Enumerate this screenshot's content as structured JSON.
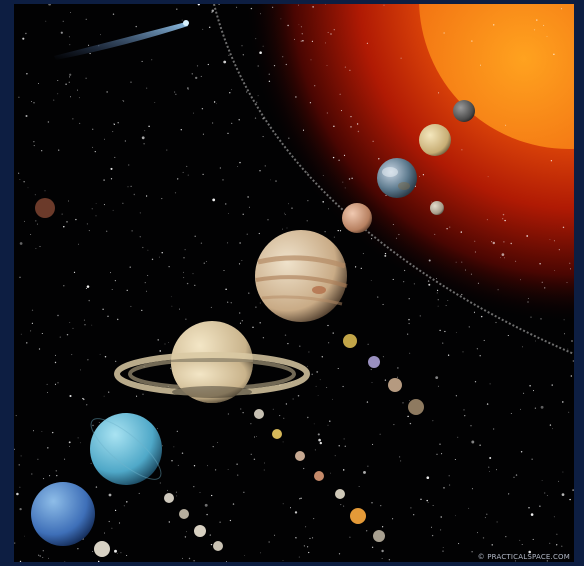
{
  "image": {
    "subject": "solar system illustration",
    "watermark": "© PRACTICALSPACE.COM",
    "colors": {
      "frame": "#0d1e42",
      "space": "#020203",
      "sun_core": "#ff8a1a",
      "sun_edge": "#8a1002",
      "orbit_path": "#8a8a8a"
    },
    "bodies": [
      "sun",
      "mercury",
      "venus",
      "earth",
      "moon",
      "mars",
      "jupiter",
      "saturn",
      "uranus",
      "neptune",
      "comet",
      "dwarf-planets",
      "moons"
    ]
  }
}
